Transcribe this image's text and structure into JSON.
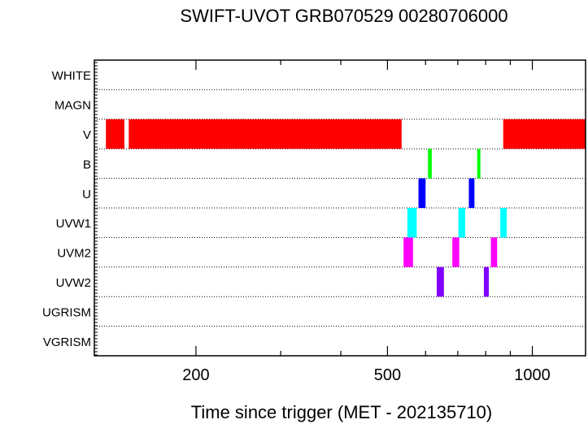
{
  "chart_data": {
    "type": "bar",
    "title": "SWIFT-UVOT GRB070529 00280706000",
    "xlabel": "Time since trigger (MET - 202135710)",
    "ylabel": "",
    "x_scale": "log",
    "xlim": [
      123,
      1290
    ],
    "x_ticks": [
      200,
      500,
      1000
    ],
    "x_tick_labels": [
      "200",
      "500",
      "1000"
    ],
    "categories": [
      "WHITE",
      "MAGN",
      "V",
      "B",
      "U",
      "UVW1",
      "UVM2",
      "UVW2",
      "UGRISM",
      "VGRISM"
    ],
    "series": [
      {
        "filter": "V",
        "color": "#ff0000",
        "intervals": [
          [
            130,
            142
          ],
          [
            145,
            535
          ],
          [
            870,
            1290
          ]
        ]
      },
      {
        "filter": "B",
        "color": "#00ff00",
        "intervals": [
          [
            607,
            618
          ],
          [
            768,
            780
          ]
        ]
      },
      {
        "filter": "U",
        "color": "#0000ff",
        "intervals": [
          [
            580,
            600
          ],
          [
            738,
            758
          ]
        ]
      },
      {
        "filter": "UVW1",
        "color": "#00ffff",
        "intervals": [
          [
            550,
            575
          ],
          [
            702,
            725
          ],
          [
            858,
            885
          ]
        ]
      },
      {
        "filter": "UVM2",
        "color": "#ff00ff",
        "intervals": [
          [
            540,
            565
          ],
          [
            682,
            705
          ],
          [
            820,
            845
          ]
        ]
      },
      {
        "filter": "UVW2",
        "color": "#8000ff",
        "intervals": [
          [
            633,
            655
          ],
          [
            793,
            812
          ]
        ]
      }
    ]
  }
}
